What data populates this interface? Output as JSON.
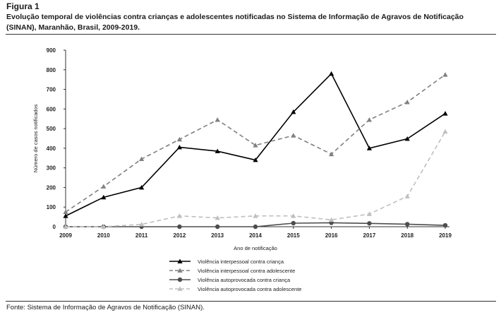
{
  "figure_label": "Figura 1",
  "caption": "Evolução temporal de violências contra crianças e adolescentes notificadas no Sistema de Informação de Agravos de Notificação (SINAN), Maranhão, Brasil, 2009-2019.",
  "source": "Fonte: Sistema de Informação de Agravos de Notificação (SINAN).",
  "chart_data": {
    "type": "line",
    "title": "",
    "xlabel": "Ano de notificação",
    "ylabel": "Número de casos notificados",
    "x": [
      "2009",
      "2010",
      "2011",
      "2012",
      "2013",
      "2014",
      "2015",
      "2016",
      "2017",
      "2018",
      "2019"
    ],
    "ylim": [
      0,
      900
    ],
    "yticks": [
      0,
      100,
      200,
      300,
      400,
      500,
      600,
      700,
      800,
      900
    ],
    "grid": false,
    "legend_position": "bottom",
    "series": [
      {
        "name": "Violência interpessoal contra criança",
        "color": "#000000",
        "dash": "solid",
        "marker": "triangle",
        "values": [
          55,
          150,
          200,
          405,
          385,
          340,
          585,
          780,
          400,
          448,
          577
        ]
      },
      {
        "name": "Violência interpessoal contra adolescente",
        "color": "#808080",
        "dash": "dashed",
        "marker": "triangle",
        "values": [
          75,
          205,
          345,
          445,
          545,
          415,
          465,
          370,
          545,
          635,
          775
        ]
      },
      {
        "name": "Violência autoprovocada contra criança",
        "color": "#4d4d4d",
        "dash": "solid",
        "marker": "circle",
        "values": [
          0,
          0,
          0,
          0,
          0,
          0,
          18,
          20,
          17,
          13,
          7
        ]
      },
      {
        "name": "Violência autoprovocada contra adolescente",
        "color": "#bfbfbf",
        "dash": "dashed",
        "marker": "triangle",
        "values": [
          0,
          0,
          12,
          55,
          45,
          55,
          55,
          35,
          65,
          155,
          485
        ]
      }
    ]
  }
}
